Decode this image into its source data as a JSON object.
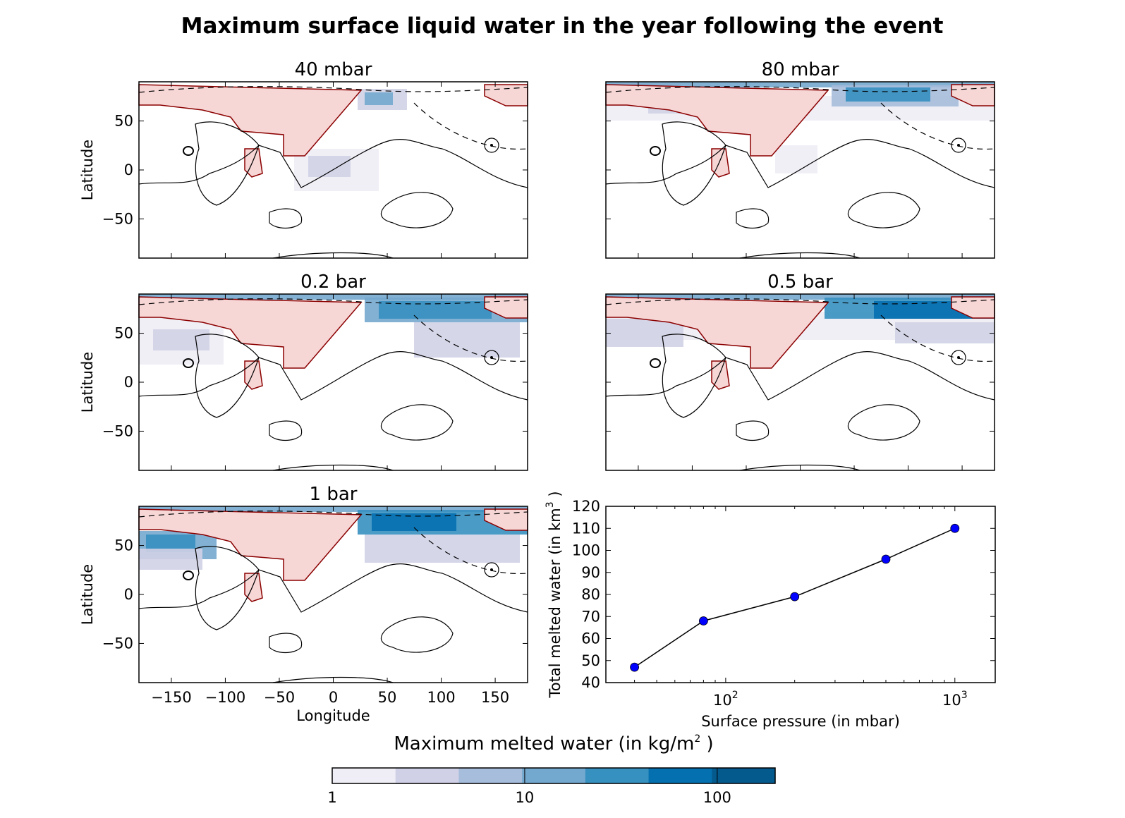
{
  "figure": {
    "title": "Maximum surface liquid water in the year following the event"
  },
  "maps": [
    {
      "title": "40 mbar"
    },
    {
      "title": "80 mbar"
    },
    {
      "title": "0.2 bar"
    },
    {
      "title": "0.5 bar"
    },
    {
      "title": "1 bar"
    }
  ],
  "map_axes": {
    "ylabel": "Latitude",
    "xlabel": "Longitude",
    "yticks": [
      "50",
      "0",
      "−50"
    ],
    "xticks": [
      "−150",
      "−100",
      "−50",
      "0",
      "50",
      "100",
      "150"
    ]
  },
  "colorbar": {
    "label_main": "Maximum melted water (in kg/m",
    "label_sup": "2",
    "label_end": " )",
    "ticks": [
      "1",
      "10",
      "100"
    ],
    "colors": [
      "#efedf5",
      "#d0d1e6",
      "#a6bddb",
      "#74a9cf",
      "#3690c0",
      "#0570b0",
      "#045a8d"
    ]
  },
  "colors": {
    "ice_fill": "#f7d6d6",
    "ice_edge": "#8b0000",
    "marker": "#0000ff"
  },
  "chart_data": {
    "type": "line",
    "x": [
      40,
      80,
      200,
      500,
      1000
    ],
    "y": [
      47,
      68,
      79,
      96,
      110
    ],
    "xscale": "log",
    "xlim": [
      30,
      1500
    ],
    "ylim": [
      40,
      120
    ],
    "yticks": [
      "40",
      "50",
      "60",
      "70",
      "80",
      "90",
      "100",
      "110",
      "120"
    ],
    "xticks": [
      {
        "base": "10",
        "exp": "2"
      },
      {
        "base": "10",
        "exp": "3"
      }
    ],
    "xlabel": "Surface pressure (in mbar)",
    "ylabel_main": "Total melted water (in km",
    "ylabel_sup": "3",
    "ylabel_end": " )"
  }
}
